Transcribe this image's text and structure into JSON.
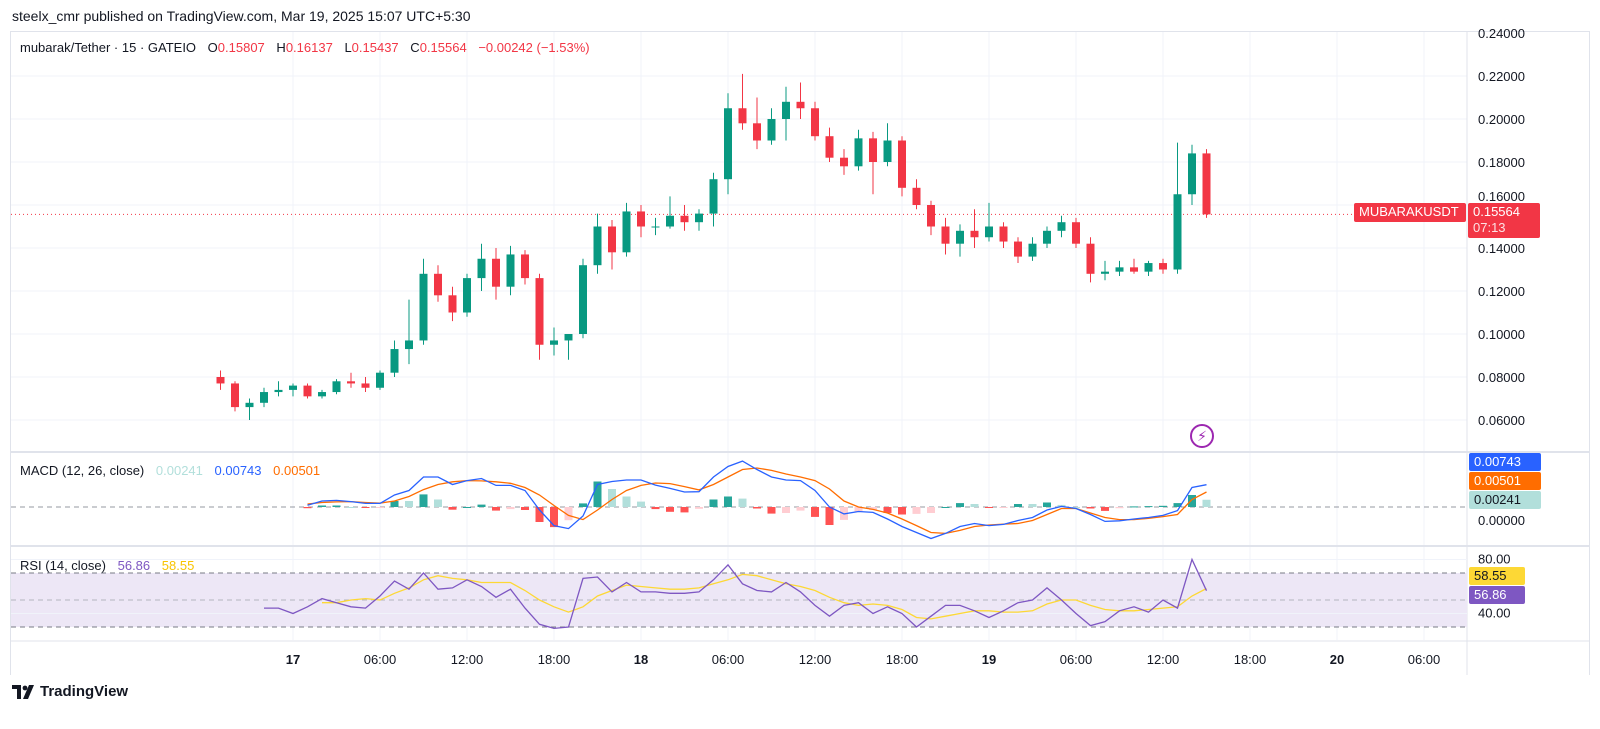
{
  "header": {
    "publish_line": "steelx_cmr published on TradingView.com, Mar 19, 2025 15:07 UTC+5:30"
  },
  "legend": {
    "symbol": "mubarak/Tether · 15 · GATEIO",
    "o_label": "O",
    "o": "0.15807",
    "h_label": "H",
    "h": "0.16137",
    "l_label": "L",
    "l": "0.15437",
    "c_label": "C",
    "c": "0.15564",
    "change": "−0.00242 (−1.53%)"
  },
  "price_tag": {
    "symbol": "MUBARAKUSDT",
    "price": "0.15564",
    "countdown": "07:13"
  },
  "macd_legend": {
    "label": "MACD (12, 26, close)",
    "hist": "0.00241",
    "macd": "0.00743",
    "signal": "0.00501"
  },
  "rsi_legend": {
    "label": "RSI (14, close)",
    "value": "56.86",
    "ma": "58.55"
  },
  "alert_icon": "lightning-bolt-icon",
  "footer": {
    "brand": "TradingView",
    "logo_icon": "tradingview-logo-icon"
  },
  "colors": {
    "up": "#089981",
    "down": "#f23645",
    "grid": "#f0f3fa",
    "macd": "#2962ff",
    "signal": "#ff6d00",
    "hist_up_strong": "#26a69a",
    "hist_up_weak": "#b2dfdb",
    "hist_down_strong": "#ff5252",
    "hist_down_weak": "#ffcdd2",
    "rsi": "#7e57c2",
    "rsi_ma": "#fdd835",
    "rsi_band": "#ede7f6",
    "alert": "#9c27b0"
  },
  "chart_data": [
    {
      "type": "candlestick",
      "interval_note": "hourly approximation of 15-minute candles",
      "ylim": [
        0.05,
        0.24
      ],
      "price_ticks": [
        "0.24000",
        "0.22000",
        "0.20000",
        "0.18000",
        "0.16000",
        "0.14000",
        "0.12000",
        "0.10000",
        "0.08000",
        "0.06000"
      ],
      "x_ticks": [
        {
          "label": "17",
          "day": true
        },
        {
          "label": "06:00"
        },
        {
          "label": "12:00"
        },
        {
          "label": "18:00"
        },
        {
          "label": "18",
          "day": true
        },
        {
          "label": "06:00"
        },
        {
          "label": "12:00"
        },
        {
          "label": "18:00"
        },
        {
          "label": "19",
          "day": true
        },
        {
          "label": "06:00"
        },
        {
          "label": "12:00"
        },
        {
          "label": "18:00"
        },
        {
          "label": "20",
          "day": true
        },
        {
          "label": "06:00"
        }
      ],
      "last_price": 0.15564,
      "candles": [
        [
          0.08,
          0.083,
          0.074,
          0.077
        ],
        [
          0.077,
          0.078,
          0.064,
          0.066
        ],
        [
          0.066,
          0.07,
          0.06,
          0.068
        ],
        [
          0.068,
          0.075,
          0.066,
          0.073
        ],
        [
          0.073,
          0.078,
          0.071,
          0.074
        ],
        [
          0.074,
          0.077,
          0.071,
          0.076
        ],
        [
          0.076,
          0.077,
          0.07,
          0.071
        ],
        [
          0.071,
          0.074,
          0.07,
          0.073
        ],
        [
          0.073,
          0.079,
          0.072,
          0.078
        ],
        [
          0.078,
          0.082,
          0.075,
          0.077
        ],
        [
          0.077,
          0.08,
          0.073,
          0.075
        ],
        [
          0.075,
          0.083,
          0.074,
          0.082
        ],
        [
          0.082,
          0.097,
          0.08,
          0.093
        ],
        [
          0.093,
          0.116,
          0.086,
          0.097
        ],
        [
          0.097,
          0.135,
          0.095,
          0.128
        ],
        [
          0.128,
          0.132,
          0.115,
          0.118
        ],
        [
          0.118,
          0.122,
          0.106,
          0.11
        ],
        [
          0.11,
          0.128,
          0.108,
          0.126
        ],
        [
          0.126,
          0.142,
          0.12,
          0.135
        ],
        [
          0.135,
          0.14,
          0.116,
          0.122
        ],
        [
          0.122,
          0.141,
          0.118,
          0.137
        ],
        [
          0.137,
          0.139,
          0.123,
          0.126
        ],
        [
          0.126,
          0.128,
          0.088,
          0.095
        ],
        [
          0.095,
          0.103,
          0.09,
          0.097
        ],
        [
          0.097,
          0.1,
          0.088,
          0.1
        ],
        [
          0.1,
          0.135,
          0.098,
          0.132
        ],
        [
          0.132,
          0.156,
          0.128,
          0.15
        ],
        [
          0.15,
          0.153,
          0.13,
          0.138
        ],
        [
          0.138,
          0.161,
          0.136,
          0.157
        ],
        [
          0.157,
          0.16,
          0.145,
          0.15
        ],
        [
          0.15,
          0.154,
          0.146,
          0.15
        ],
        [
          0.15,
          0.164,
          0.149,
          0.155
        ],
        [
          0.155,
          0.16,
          0.148,
          0.152
        ],
        [
          0.152,
          0.158,
          0.148,
          0.156
        ],
        [
          0.156,
          0.175,
          0.15,
          0.172
        ],
        [
          0.172,
          0.212,
          0.165,
          0.205
        ],
        [
          0.205,
          0.221,
          0.195,
          0.198
        ],
        [
          0.198,
          0.21,
          0.186,
          0.19
        ],
        [
          0.19,
          0.205,
          0.188,
          0.2
        ],
        [
          0.2,
          0.215,
          0.19,
          0.208
        ],
        [
          0.208,
          0.217,
          0.2,
          0.205
        ],
        [
          0.205,
          0.208,
          0.19,
          0.192
        ],
        [
          0.192,
          0.196,
          0.18,
          0.182
        ],
        [
          0.182,
          0.186,
          0.174,
          0.178
        ],
        [
          0.178,
          0.195,
          0.176,
          0.191
        ],
        [
          0.191,
          0.194,
          0.165,
          0.18
        ],
        [
          0.18,
          0.198,
          0.178,
          0.19
        ],
        [
          0.19,
          0.192,
          0.164,
          0.168
        ],
        [
          0.168,
          0.172,
          0.158,
          0.16
        ],
        [
          0.16,
          0.162,
          0.146,
          0.15
        ],
        [
          0.15,
          0.154,
          0.137,
          0.142
        ],
        [
          0.142,
          0.151,
          0.136,
          0.148
        ],
        [
          0.148,
          0.158,
          0.14,
          0.145
        ],
        [
          0.145,
          0.161,
          0.143,
          0.15
        ],
        [
          0.15,
          0.152,
          0.14,
          0.143
        ],
        [
          0.143,
          0.145,
          0.133,
          0.136
        ],
        [
          0.136,
          0.145,
          0.134,
          0.142
        ],
        [
          0.142,
          0.15,
          0.14,
          0.148
        ],
        [
          0.148,
          0.155,
          0.145,
          0.152
        ],
        [
          0.152,
          0.154,
          0.14,
          0.142
        ],
        [
          0.142,
          0.145,
          0.124,
          0.128
        ],
        [
          0.128,
          0.134,
          0.125,
          0.129
        ],
        [
          0.129,
          0.134,
          0.127,
          0.131
        ],
        [
          0.131,
          0.135,
          0.128,
          0.129
        ],
        [
          0.129,
          0.134,
          0.127,
          0.133
        ],
        [
          0.133,
          0.135,
          0.128,
          0.13
        ],
        [
          0.13,
          0.189,
          0.128,
          0.165
        ],
        [
          0.165,
          0.188,
          0.16,
          0.184
        ],
        [
          0.184,
          0.186,
          0.154,
          0.15564
        ]
      ]
    },
    {
      "type": "line",
      "name": "MACD (12, 26, close)",
      "zero_tick": "0.00000",
      "series": [
        {
          "name": "MACD",
          "values": [
            null,
            null,
            null,
            null,
            null,
            null,
            0.0006,
            0.002,
            0.0022,
            0.0018,
            0.0012,
            0.0012,
            0.004,
            0.0055,
            0.01,
            0.01,
            0.0075,
            0.0088,
            0.0095,
            0.0072,
            0.0072,
            0.0055,
            -0.001,
            -0.0062,
            -0.0072,
            -0.003,
            0.0075,
            0.0085,
            0.009,
            0.009,
            0.0073,
            0.0062,
            0.005,
            0.0051,
            0.01,
            0.0135,
            0.0153,
            0.0125,
            0.01,
            0.009,
            0.0088,
            0.0055,
            0.0,
            -0.0023,
            -0.0015,
            -0.0018,
            -0.004,
            -0.0065,
            -0.0085,
            -0.0105,
            -0.0088,
            -0.0065,
            -0.0055,
            -0.0062,
            -0.0058,
            -0.0045,
            -0.0035,
            -0.001,
            0.0002,
            -0.0005,
            -0.0025,
            -0.0048,
            -0.0046,
            -0.004,
            -0.0035,
            -0.0028,
            -0.0012,
            0.0065,
            0.00743
          ]
        },
        {
          "name": "Signal",
          "values": [
            null,
            null,
            null,
            null,
            null,
            null,
            0.001,
            0.0015,
            0.0017,
            0.0018,
            0.0015,
            0.0013,
            0.002,
            0.0035,
            0.0058,
            0.0075,
            0.0084,
            0.0088,
            0.0087,
            0.0084,
            0.0079,
            0.0065,
            0.004,
            0.0005,
            -0.0028,
            -0.0042,
            -0.001,
            0.0025,
            0.0055,
            0.0072,
            0.008,
            0.0078,
            0.0068,
            0.0057,
            0.0075,
            0.01,
            0.0125,
            0.013,
            0.0122,
            0.011,
            0.01,
            0.0088,
            0.006,
            0.002,
            0.0,
            -0.0008,
            -0.002,
            -0.004,
            -0.0062,
            -0.0085,
            -0.0088,
            -0.0078,
            -0.0065,
            -0.006,
            -0.0057,
            -0.0055,
            -0.0045,
            -0.0025,
            -0.0005,
            -0.0005,
            -0.002,
            -0.0035,
            -0.0042,
            -0.0042,
            -0.0038,
            -0.0032,
            -0.0025,
            0.0025,
            0.00501
          ]
        }
      ]
    },
    {
      "type": "line",
      "name": "RSI (14, close)",
      "ylim": [
        20,
        90
      ],
      "ticks": [
        "80.00",
        "40.00"
      ],
      "bands": [
        70,
        50,
        30
      ],
      "series": [
        {
          "name": "RSI",
          "values": [
            null,
            null,
            null,
            44,
            44,
            40,
            45,
            51,
            48,
            45,
            44,
            53,
            64,
            58,
            70,
            58,
            59,
            65,
            60,
            52,
            58,
            44,
            32,
            29,
            30,
            66,
            67,
            56,
            63,
            56,
            56,
            55,
            55,
            56,
            65,
            76,
            62,
            57,
            56,
            63,
            56,
            46,
            38,
            46,
            48,
            40,
            45,
            40,
            30,
            38,
            46,
            46,
            42,
            37,
            42,
            48,
            50,
            59,
            50,
            40,
            31,
            34,
            42,
            45,
            41,
            50,
            44,
            80,
            56.86
          ]
        },
        {
          "name": "RSI-based MA",
          "values": [
            null,
            null,
            null,
            null,
            null,
            null,
            null,
            48,
            48,
            50,
            51,
            50,
            55,
            59,
            65,
            68,
            66,
            65,
            63,
            63,
            63,
            57,
            50,
            45,
            41,
            45,
            53,
            57,
            61,
            60,
            59,
            58,
            58,
            59,
            62,
            65,
            69,
            68,
            65,
            62,
            60,
            57,
            52,
            48,
            46,
            47,
            46,
            43,
            37,
            36,
            38,
            40,
            42,
            42,
            41,
            41,
            42,
            47,
            50,
            50,
            46,
            43,
            42,
            42,
            43,
            44,
            45,
            53,
            58.55
          ]
        }
      ]
    }
  ]
}
